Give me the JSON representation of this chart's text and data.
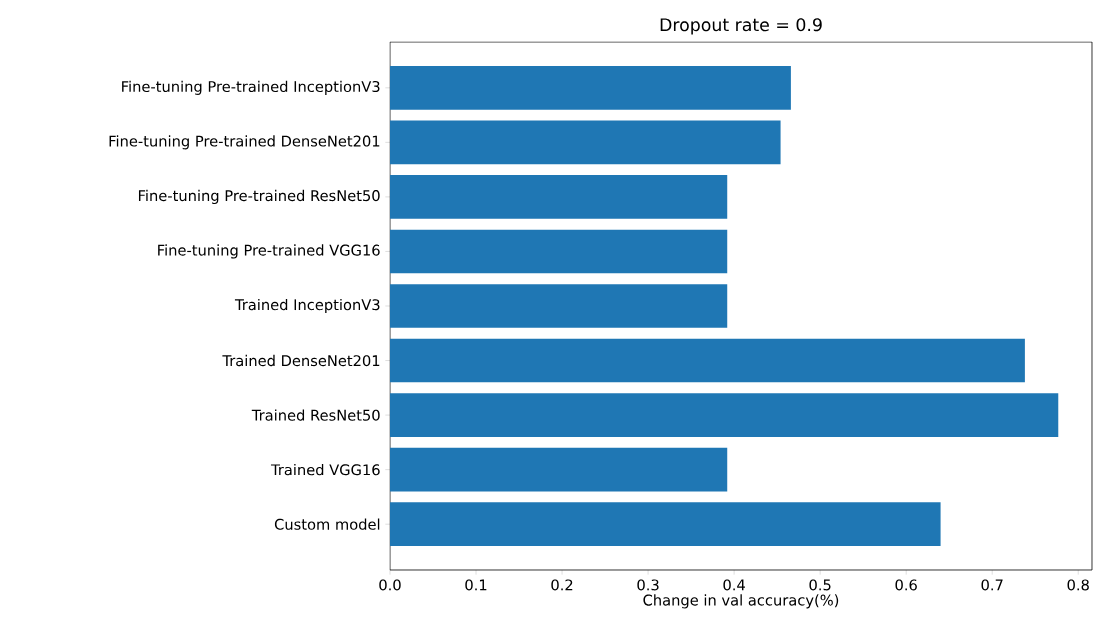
{
  "chart_data": {
    "type": "bar",
    "orientation": "horizontal",
    "title": "Dropout rate = 0.9",
    "xlabel": "Change in val accuracy(%)",
    "categories": [
      "Fine-tuning Pre-trained InceptionV3",
      "Fine-tuning Pre-trained DenseNet201",
      "Fine-tuning Pre-trained ResNet50",
      "Fine-tuning Pre-trained VGG16",
      "Trained InceptionV3",
      "Trained DenseNet201",
      "Trained ResNet50",
      "Trained VGG16",
      "Custom model"
    ],
    "values": [
      0.466,
      0.454,
      0.392,
      0.392,
      0.392,
      0.738,
      0.777,
      0.392,
      0.64
    ],
    "color": "#1f77b4",
    "xlim": [
      0,
      0.816
    ],
    "xticks": [
      {
        "value": 0,
        "label": "0.0"
      },
      0.1,
      0.2,
      0.3,
      0.4,
      0.5,
      0.6,
      0.7,
      0.8
    ]
  }
}
